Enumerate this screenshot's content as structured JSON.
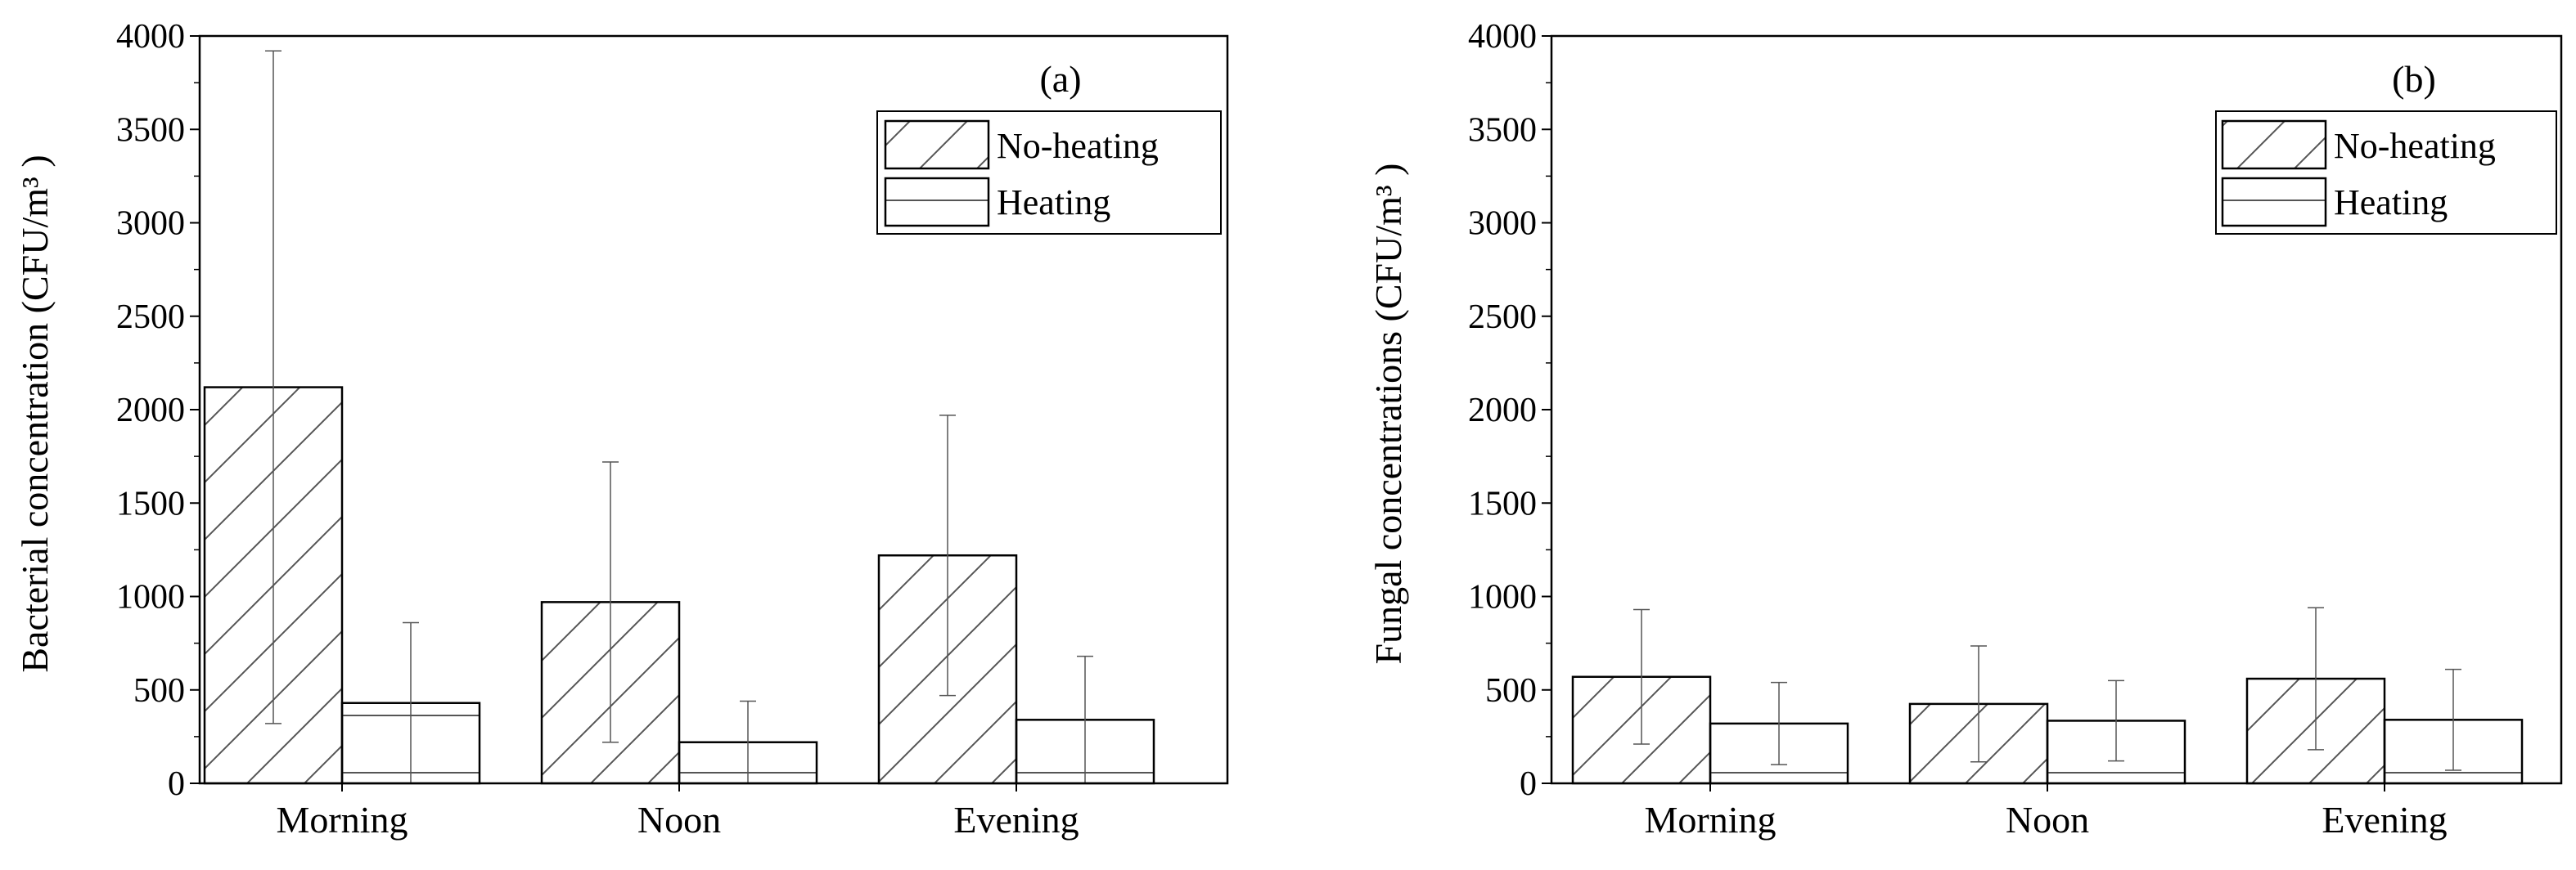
{
  "chart_data": [
    {
      "type": "bar",
      "panel_tag": "(a)",
      "categories": [
        "Morning",
        "Noon",
        "Evening"
      ],
      "series": [
        {
          "name": "No-heating",
          "pattern": "diagonal-hatch",
          "values": [
            2120,
            970,
            1220
          ],
          "error": [
            1800,
            750,
            750
          ]
        },
        {
          "name": "Heating",
          "pattern": "horizontal-lines",
          "values": [
            430,
            220,
            340
          ],
          "error": [
            430,
            220,
            340
          ]
        }
      ],
      "ylabel": "Bacterial concentration (CFU/m³ )",
      "xlabel": "",
      "ylim": [
        0,
        4000
      ],
      "yticks": [
        0,
        500,
        1000,
        1500,
        2000,
        2500,
        3000,
        3500,
        4000
      ],
      "legend_position": "top-right",
      "grid": false
    },
    {
      "type": "bar",
      "panel_tag": "(b)",
      "categories": [
        "Morning",
        "Noon",
        "Evening"
      ],
      "series": [
        {
          "name": "No-heating",
          "pattern": "diagonal-hatch",
          "values": [
            570,
            425,
            560
          ],
          "error": [
            360,
            310,
            380
          ]
        },
        {
          "name": "Heating",
          "pattern": "horizontal-lines",
          "values": [
            320,
            335,
            340
          ],
          "error": [
            220,
            215,
            270
          ]
        }
      ],
      "ylabel": "Fungal concentrations (CFU/m³ )",
      "xlabel": "",
      "ylim": [
        0,
        4000
      ],
      "yticks": [
        0,
        500,
        1000,
        1500,
        2000,
        2500,
        3000,
        3500,
        4000
      ],
      "legend_position": "top-right",
      "grid": false
    }
  ]
}
